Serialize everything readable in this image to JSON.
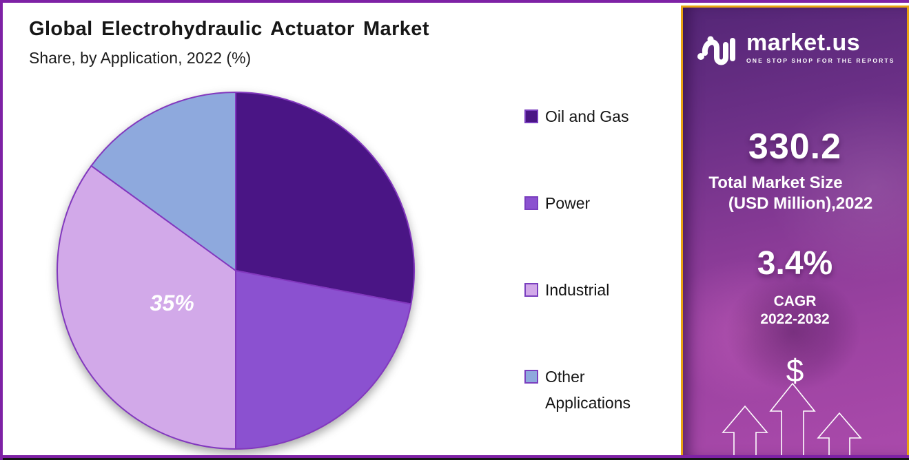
{
  "page": {
    "outer_border_color": "#7e21a5",
    "bottom_line_color": "#151515",
    "background": "#ffffff"
  },
  "header": {
    "title": "Global Electrohydraulic Actuator Market",
    "subtitle": "Share, by Application, 2022 (%)"
  },
  "chart_data": {
    "type": "pie",
    "title": "Global Electrohydraulic Actuator Market Share, by Application, 2022 (%)",
    "unit": "%",
    "start_angle_deg": 0,
    "direction": "clockwise",
    "legend_position": "right",
    "slice_border_color": "#8238be",
    "slices": [
      {
        "label": "Oil and Gas",
        "value": 28,
        "color": "#4a1585",
        "data_label": ""
      },
      {
        "label": "Power",
        "value": 22,
        "color": "#8b51d0",
        "data_label": ""
      },
      {
        "label": "Industrial",
        "value": 35,
        "color": "#d2a9e9",
        "data_label": "35%"
      },
      {
        "label": "Other Applications",
        "value": 15,
        "color": "#8ea9dd",
        "data_label": ""
      }
    ],
    "note": "Only the Industrial slice shows an on-chart data label (35%); other values estimated from arc angles."
  },
  "sidebar": {
    "accent_border_color": "#e9a312",
    "gradient_top_color": "#542676",
    "gradient_bottom_color": "#aa4aab",
    "logo": {
      "brand": "market.us",
      "tagline": "ONE STOP SHOP FOR THE REPORTS"
    },
    "market_size": {
      "value": "330.2",
      "label_line1": "Total Market Size",
      "label_line2": "(USD Million),2022"
    },
    "cagr": {
      "value": "3.4%",
      "label_line1": "CAGR",
      "label_line2": "2022-2032"
    },
    "dollar_symbol": "$"
  }
}
